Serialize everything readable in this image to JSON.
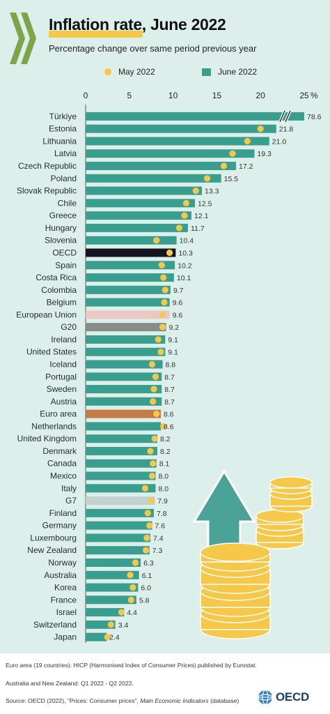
{
  "title": "Inflation rate, June 2022",
  "subtitle": "Percentage change over same period previous year",
  "legend": {
    "may": "May 2022",
    "june": "June 2022"
  },
  "chart_data": {
    "type": "bar",
    "orientation": "horizontal",
    "xlim": [
      0,
      25
    ],
    "ticks": [
      "0",
      "5",
      "10",
      "15",
      "20",
      "25"
    ],
    "tick_values": [
      0,
      5,
      10,
      15,
      20,
      25
    ],
    "unit_label": "%",
    "axis_break": "Türkiye",
    "categories": [
      "Türkiye",
      "Estonia",
      "Lithuania",
      "Latvia",
      "Czech Republic",
      "Poland",
      "Slovak Republic",
      "Chile",
      "Greece",
      "Hungary",
      "Slovenia",
      "OECD",
      "Spain",
      "Costa Rica",
      "Colombia",
      "Belgium",
      "European Union",
      "G20",
      "Ireland",
      "United States",
      "Iceland",
      "Portugal",
      "Sweden",
      "Austria",
      "Euro area",
      "Netherlands",
      "United Kingdom",
      "Denmark",
      "Canada",
      "Mexico",
      "Italy",
      "G7",
      "Finland",
      "Germany",
      "Luxembourg",
      "New Zealand",
      "Norway",
      "Australia",
      "Korea",
      "France",
      "Israel",
      "Switzerland",
      "Japan"
    ],
    "labels": [
      "78.6",
      "21.8",
      "21.0",
      "19.3",
      "17.2",
      "15.5",
      "13.3",
      "12.5",
      "12.1",
      "11.7",
      "10.4",
      "10.3",
      "10.2",
      "10.1",
      "9.7",
      "9.6",
      "9.6",
      "9.2",
      "9.1",
      "9.1",
      "8.8",
      "8.7",
      "8.7",
      "8.7",
      "8.6",
      "8.6",
      "8.2",
      "8.2",
      "8.1",
      "8.0",
      "8.0",
      "7.9",
      "7.8",
      "7.6",
      "7.4",
      "7.3",
      "6.3",
      "6.1",
      "6.0",
      "5.8",
      "4.4",
      "3.4",
      "2.4"
    ],
    "series": [
      {
        "name": "June 2022",
        "values": [
          78.6,
          21.8,
          21.0,
          19.3,
          17.2,
          15.5,
          13.3,
          12.5,
          12.1,
          11.7,
          10.4,
          10.3,
          10.2,
          10.1,
          9.7,
          9.6,
          9.6,
          9.2,
          9.1,
          9.1,
          8.8,
          8.7,
          8.7,
          8.7,
          8.6,
          8.6,
          8.2,
          8.2,
          8.1,
          8.0,
          8.0,
          7.9,
          7.8,
          7.6,
          7.4,
          7.3,
          6.3,
          6.1,
          6.0,
          5.8,
          4.4,
          3.4,
          2.4
        ]
      },
      {
        "name": "May 2022",
        "values": [
          73.5,
          20.0,
          18.5,
          16.8,
          15.8,
          13.9,
          12.6,
          11.5,
          11.3,
          10.7,
          8.1,
          9.6,
          8.7,
          8.9,
          9.1,
          9.0,
          8.8,
          8.8,
          8.3,
          8.6,
          7.6,
          8.0,
          7.8,
          7.7,
          8.1,
          8.9,
          7.9,
          7.4,
          7.7,
          7.6,
          6.8,
          7.5,
          7.1,
          7.3,
          7.0,
          6.9,
          5.7,
          5.1,
          5.4,
          5.2,
          4.1,
          2.9,
          2.5
        ]
      }
    ],
    "colors": {
      "bar": "#3a9e8f",
      "dot": "#f5c84a",
      "highlights": {
        "OECD": "#15151f",
        "European Union": "#eac8c4",
        "G20": "#868c86",
        "Euro area": "#c47a45",
        "G7": "#c2d0ce"
      }
    }
  },
  "footer": {
    "note1": "Euro area (19 countries): HICP (Harmonised Index of Consumer Prices) published by Eurostat.",
    "note2": "Australia and New Zealand: Q1 2022 - Q2 2022.",
    "source_prefix": "Source: OECD (2022), \"Prices: Consumer prices\", ",
    "source_italic": "Main Economic Indicators",
    "source_suffix": " (database)",
    "logo_text": "OECD"
  }
}
